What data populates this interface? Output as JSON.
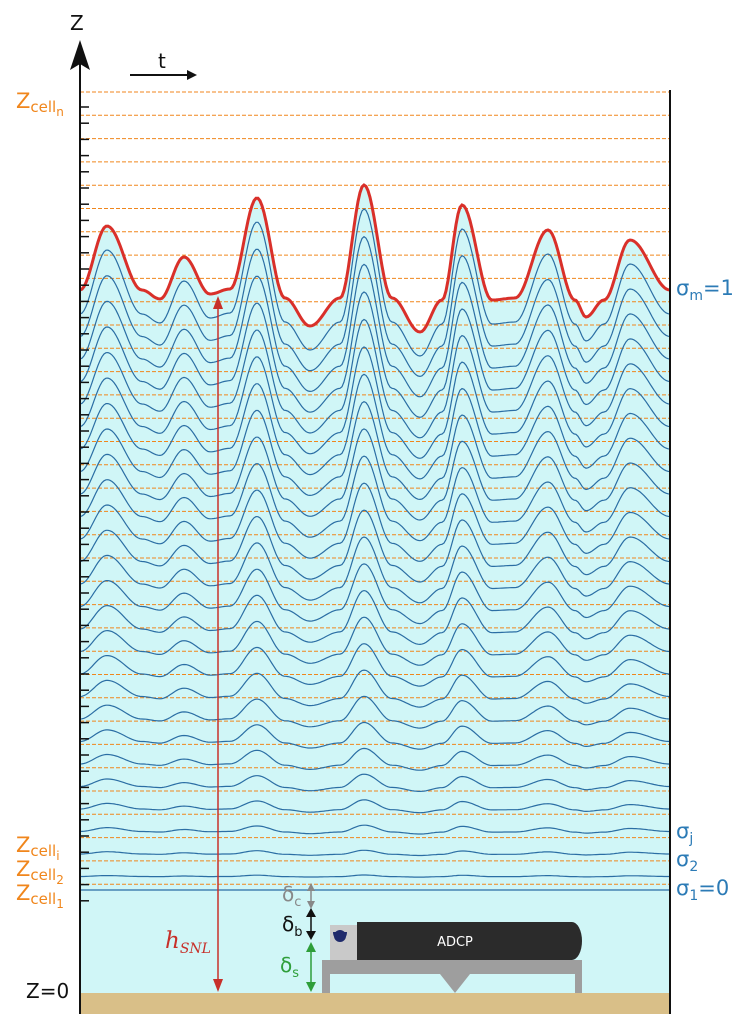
{
  "axes": {
    "vertical_label": "Z",
    "time_label": "t",
    "origin_label": "Z=0"
  },
  "cell_labels": {
    "top": {
      "base": "Z",
      "sub": "cell",
      "subsub": "n"
    },
    "i": {
      "base": "Z",
      "sub": "cell",
      "subsub": "i"
    },
    "two": {
      "base": "Z",
      "sub": "cell",
      "subsub": "2"
    },
    "one": {
      "base": "Z",
      "sub": "cell",
      "subsub": "1"
    }
  },
  "sigma_labels": {
    "top": {
      "base": "σ",
      "sub": "m",
      "suffix": "=1"
    },
    "j": {
      "base": "σ",
      "sub": "j",
      "suffix": ""
    },
    "two": {
      "base": "σ",
      "sub": "2",
      "suffix": ""
    },
    "one": {
      "base": "σ",
      "sub": "1",
      "suffix": "=0"
    }
  },
  "depth_label": {
    "base": "h",
    "sub": "SNL"
  },
  "delta_labels": {
    "c": {
      "base": "δ",
      "sub": "c"
    },
    "b": {
      "base": "δ",
      "sub": "b"
    },
    "s": {
      "base": "δ",
      "sub": "s"
    }
  },
  "instrument": {
    "label": "ADCP"
  },
  "colors": {
    "water": "#d0f6f7",
    "seabed": "#d9bf88",
    "surface_line": "#d9302a",
    "sigma_line": "#2b6ea4",
    "cell_line": "#f0861c",
    "depth_arrow": "#c7302a",
    "delta_c": "#888888",
    "delta_b": "#111111",
    "delta_s": "#2e9e3a",
    "adcp_body": "#2b2b2b",
    "adcp_mount": "#9e9e9e"
  }
}
